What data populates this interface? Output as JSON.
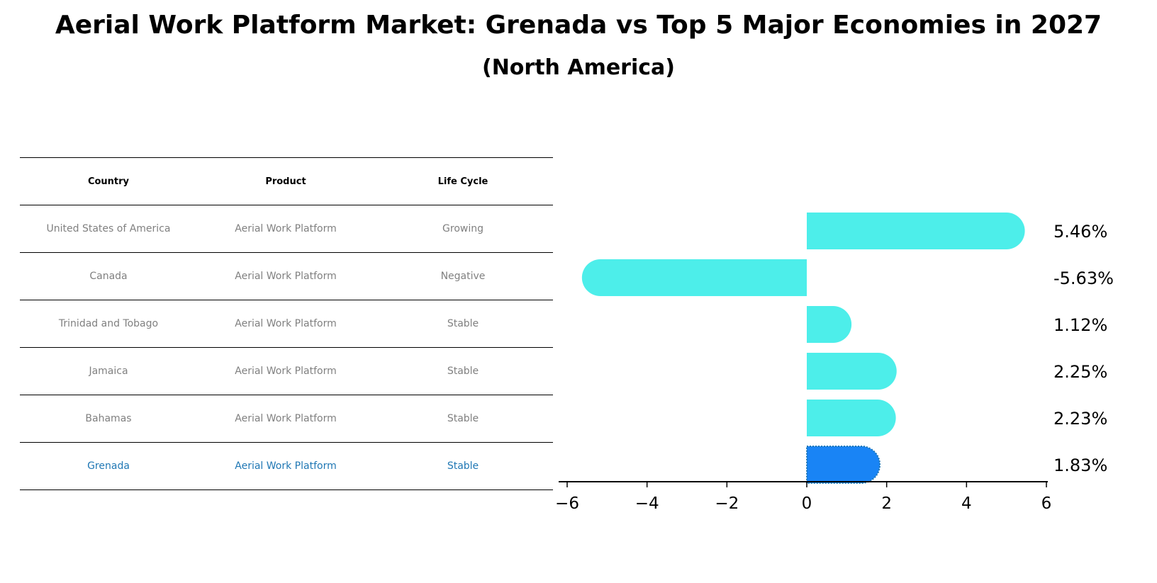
{
  "title": "Aerial Work Platform Market: Grenada vs Top 5 Major Economies in 2027",
  "subtitle": "(North America)",
  "table": {
    "headers": [
      "Country",
      "Product",
      "Life Cycle"
    ],
    "rows": [
      [
        "United States of America",
        "Aerial Work Platform",
        "Growing"
      ],
      [
        "Canada",
        "Aerial Work Platform",
        "Negative"
      ],
      [
        "Trinidad and Tobago",
        "Aerial Work Platform",
        "Stable"
      ],
      [
        "Jamaica",
        "Aerial Work Platform",
        "Stable"
      ],
      [
        "Bahamas",
        "Aerial Work Platform",
        "Stable"
      ],
      [
        "Grenada",
        "Aerial Work Platform",
        "Stable"
      ]
    ],
    "highlight_color": "#1f77b4",
    "text_color": "#808080"
  },
  "chart_data": {
    "type": "bar",
    "orientation": "horizontal",
    "categories": [
      "United States of America",
      "Canada",
      "Trinidad and Tobago",
      "Jamaica",
      "Bahamas",
      "Grenada"
    ],
    "values": [
      5.46,
      -5.63,
      1.12,
      2.25,
      2.23,
      1.83
    ],
    "labels": [
      "5.46%",
      "-5.63%",
      "1.12%",
      "2.25%",
      "2.23%",
      "1.83%"
    ],
    "xlim": [
      -6,
      6
    ],
    "xticks": [
      -6,
      -4,
      -2,
      0,
      2,
      4,
      6
    ],
    "xtick_labels": [
      "−6",
      "−4",
      "−2",
      "0",
      "2",
      "4",
      "6"
    ],
    "bar_color": "#4deeea",
    "highlight_color": "#1984f5",
    "highlight_index": 5
  }
}
